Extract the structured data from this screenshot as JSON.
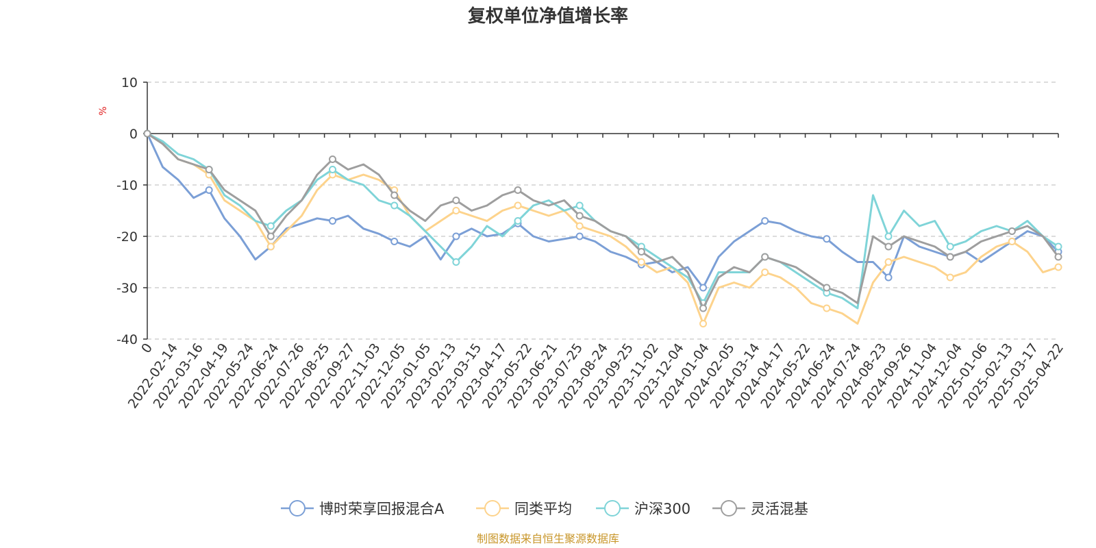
{
  "chart_data": {
    "type": "line",
    "title": "复权单位净值增长率",
    "ylabel": "%",
    "ylim": [
      -40,
      10
    ],
    "yticks": [
      10,
      0,
      -10,
      -20,
      -30,
      -40
    ],
    "grid": true,
    "legend_position": "bottom",
    "x_tick_labels": [
      "0",
      "2022-02-14",
      "2022-03-16",
      "2022-04-19",
      "2022-05-24",
      "2022-06-24",
      "2022-07-26",
      "2022-08-25",
      "2022-09-27",
      "2022-11-03",
      "2022-12-05",
      "2023-01-05",
      "2023-02-13",
      "2023-03-15",
      "2023-04-17",
      "2023-05-22",
      "2023-06-21",
      "2023-07-25",
      "2023-08-24",
      "2023-09-25",
      "2023-11-02",
      "2023-12-04",
      "2024-01-04",
      "2024-02-05",
      "2024-03-14",
      "2024-04-17",
      "2024-05-22",
      "2024-06-24",
      "2024-07-24",
      "2024-08-23",
      "2024-09-26",
      "2024-11-04",
      "2024-12-04",
      "2025-01-06",
      "2025-02-13",
      "2025-03-17",
      "2025-04-22"
    ],
    "series": [
      {
        "name": "博时荣享回报混合A",
        "color": "#7b9fd6",
        "values": [
          0,
          -6.5,
          -9,
          -12.5,
          -11,
          -16.5,
          -20,
          -24.5,
          -22,
          -18.5,
          -17.5,
          -16.5,
          -17,
          -16,
          -18.5,
          -19.5,
          -21,
          -22,
          -20,
          -24.5,
          -20,
          -18.5,
          -20,
          -19.5,
          -17.5,
          -20,
          -21,
          -20.5,
          -20,
          -21,
          -23,
          -24,
          -25.5,
          -25,
          -27,
          -26,
          -30,
          -24,
          -21,
          -19,
          -17,
          -17.5,
          -19,
          -20,
          -20.5,
          -23,
          -25,
          -25,
          -28,
          -20,
          -22,
          -23,
          -24,
          -23,
          -25,
          -23,
          -21,
          -19,
          -20,
          -23
        ]
      },
      {
        "name": "同类平均",
        "color": "#fdd38c",
        "values": [
          0,
          -2,
          -5,
          -6,
          -8,
          -13,
          -15,
          -17,
          -22,
          -19,
          -16,
          -11,
          -8,
          -9,
          -8,
          -9,
          -11,
          -16,
          -19,
          -17,
          -15,
          -16,
          -17,
          -15,
          -14,
          -15,
          -16,
          -15,
          -18,
          -19,
          -20,
          -22,
          -25,
          -27,
          -26,
          -29,
          -37,
          -30,
          -29,
          -30,
          -27,
          -28,
          -30,
          -33,
          -34,
          -35,
          -37,
          -29,
          -25,
          -24,
          -25,
          -26,
          -28,
          -27,
          -24,
          -22,
          -21,
          -23,
          -27,
          -26
        ]
      },
      {
        "name": "沪深300",
        "color": "#7fd4d8",
        "values": [
          0,
          -1.5,
          -4,
          -5,
          -7,
          -12,
          -14,
          -17,
          -18,
          -15,
          -13,
          -9,
          -7,
          -9,
          -10,
          -13,
          -14,
          -16,
          -19,
          -22,
          -25,
          -22,
          -18,
          -20,
          -17,
          -14,
          -13,
          -15,
          -14,
          -17,
          -19,
          -20,
          -22,
          -24,
          -26,
          -28,
          -33,
          -27,
          -27,
          -27,
          -24,
          -25,
          -27,
          -29,
          -31,
          -32,
          -34,
          -12,
          -20,
          -15,
          -18,
          -17,
          -22,
          -21,
          -19,
          -18,
          -19,
          -17,
          -20,
          -22
        ]
      },
      {
        "name": "灵活混基",
        "color": "#9e9e9e",
        "values": [
          0,
          -2,
          -5,
          -6,
          -7,
          -11,
          -13,
          -15,
          -20,
          -16,
          -13,
          -8,
          -5,
          -7,
          -6,
          -8,
          -12,
          -15,
          -17,
          -14,
          -13,
          -15,
          -14,
          -12,
          -11,
          -13,
          -14,
          -13,
          -16,
          -17,
          -19,
          -20,
          -23,
          -25,
          -24,
          -27,
          -34,
          -28,
          -26,
          -27,
          -24,
          -25,
          -26,
          -28,
          -30,
          -31,
          -33,
          -20,
          -22,
          -20,
          -21,
          -22,
          -24,
          -23,
          -21,
          -20,
          -19,
          -18,
          -20,
          -24
        ]
      }
    ]
  },
  "legend": {
    "items": [
      "博时荣享回报混合A",
      "同类平均",
      "沪深300",
      "灵活混基"
    ]
  },
  "source_note": "制图数据来自恒生聚源数据库"
}
